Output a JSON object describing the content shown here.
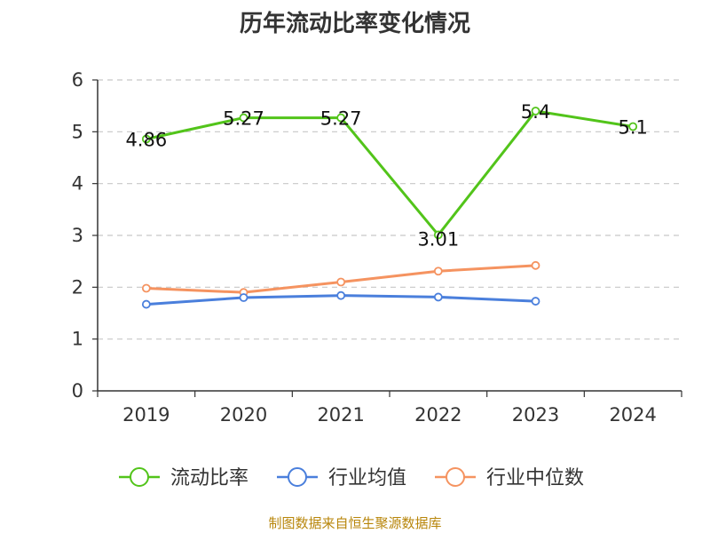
{
  "chart_data": {
    "type": "line",
    "title": "历年流动比率变化情况",
    "categories": [
      "2019",
      "2020",
      "2021",
      "2022",
      "2023",
      "2024"
    ],
    "ylim": [
      0,
      6
    ],
    "yticks": [
      0,
      1,
      2,
      3,
      4,
      5,
      6
    ],
    "grid": true,
    "legend_position": "bottom",
    "series": [
      {
        "name": "流动比率",
        "color": "#52c41a",
        "values": [
          4.86,
          5.27,
          5.27,
          3.01,
          5.4,
          5.1
        ],
        "labels": [
          "4.86",
          "5.27",
          "5.27",
          "3.01",
          "5.4",
          "5.1"
        ]
      },
      {
        "name": "行业均值",
        "color": "#4a7fdc",
        "values": [
          1.67,
          1.8,
          1.84,
          1.81,
          1.73,
          null
        ]
      },
      {
        "name": "行业中位数",
        "color": "#f59360",
        "values": [
          1.98,
          1.9,
          2.1,
          2.31,
          2.42,
          null
        ]
      }
    ]
  },
  "source": "制图数据来自恒生聚源数据库"
}
